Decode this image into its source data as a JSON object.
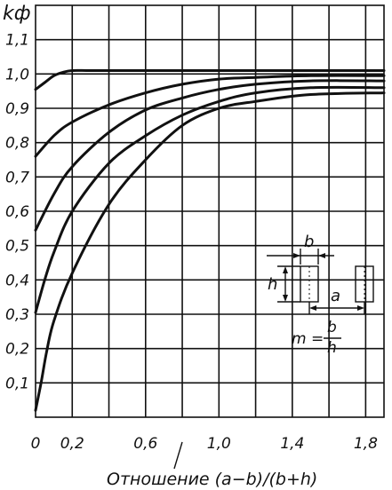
{
  "chart_data": {
    "type": "line",
    "ylabel": "kф",
    "xlabel": "Отношение (a−b)/(b+h)",
    "xlim": [
      0,
      1.9
    ],
    "ylim": [
      0,
      1.2
    ],
    "x_ticks": [
      "0",
      "0,2",
      "0,6",
      "1,0",
      "1,4",
      "1,8"
    ],
    "x_tick_values": [
      0,
      0.2,
      0.6,
      1.0,
      1.4,
      1.8
    ],
    "y_ticks": [
      "0,1",
      "0,2",
      "0,3",
      "0,4",
      "0,5",
      "0,6",
      "0,7",
      "0,8",
      "0,9",
      "1,0",
      "1,1"
    ],
    "y_tick_values": [
      0.1,
      0.2,
      0.3,
      0.4,
      0.5,
      0.6,
      0.7,
      0.8,
      0.9,
      1.0,
      1.1
    ],
    "grid": true,
    "series": [
      {
        "x": [
          0,
          0.05,
          0.1,
          0.15,
          0.2,
          0.3,
          0.5,
          1.0,
          1.5,
          1.9
        ],
        "y": [
          0.955,
          0.975,
          0.995,
          1.005,
          1.01,
          1.01,
          1.01,
          1.01,
          1.01,
          1.01
        ]
      },
      {
        "x": [
          0,
          0.1,
          0.2,
          0.4,
          0.6,
          0.8,
          1.0,
          1.2,
          1.5,
          1.9
        ],
        "y": [
          0.76,
          0.82,
          0.86,
          0.91,
          0.945,
          0.97,
          0.985,
          0.99,
          0.995,
          0.995
        ]
      },
      {
        "x": [
          0,
          0.1,
          0.2,
          0.4,
          0.6,
          0.8,
          1.0,
          1.2,
          1.5,
          1.9
        ],
        "y": [
          0.545,
          0.65,
          0.73,
          0.83,
          0.895,
          0.93,
          0.955,
          0.97,
          0.98,
          0.98
        ]
      },
      {
        "x": [
          0,
          0.05,
          0.1,
          0.2,
          0.4,
          0.6,
          0.8,
          1.0,
          1.2,
          1.5,
          1.9
        ],
        "y": [
          0.305,
          0.4,
          0.48,
          0.6,
          0.74,
          0.82,
          0.88,
          0.92,
          0.945,
          0.96,
          0.96
        ]
      },
      {
        "x": [
          0,
          0.03,
          0.06,
          0.1,
          0.2,
          0.4,
          0.6,
          0.8,
          1.0,
          1.2,
          1.5,
          1.9
        ],
        "y": [
          0.02,
          0.1,
          0.19,
          0.28,
          0.42,
          0.62,
          0.75,
          0.85,
          0.9,
          0.92,
          0.94,
          0.945
        ]
      }
    ],
    "inset": {
      "label_b": "b",
      "label_h": "h",
      "label_a": "a",
      "formula_lhs": "m =",
      "formula_num": "b",
      "formula_den": "h"
    }
  }
}
